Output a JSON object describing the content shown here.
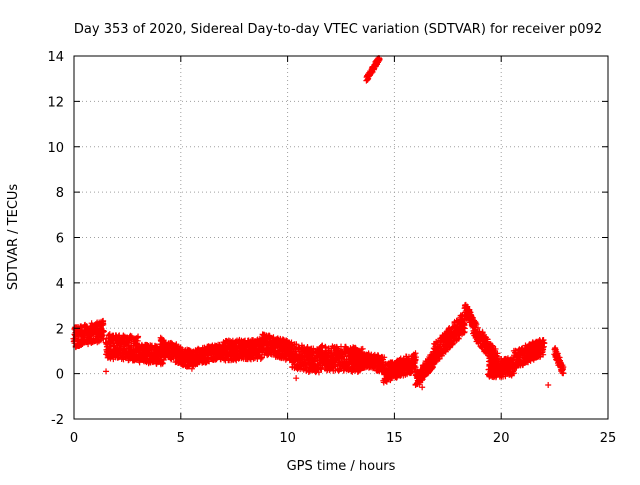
{
  "chart_data": {
    "type": "scatter",
    "title": "Day 353 of 2020, Sidereal Day-to-day VTEC variation (SDTVAR) for receiver p092",
    "xlabel": "GPS time / hours",
    "ylabel": "SDTVAR / TECUs",
    "xlim": [
      0,
      25
    ],
    "ylim": [
      -2,
      14
    ],
    "xticks": [
      0,
      5,
      10,
      15,
      20,
      25
    ],
    "yticks": [
      -2,
      0,
      2,
      4,
      6,
      8,
      10,
      12,
      14
    ],
    "xtick_labels": [
      "0",
      "5",
      "10",
      "15",
      "20",
      "25"
    ],
    "ytick_labels": [
      "-2",
      "0",
      "2",
      "4",
      "6",
      "8",
      "10",
      "12",
      "14"
    ],
    "grid": true,
    "marker": "+",
    "color": "#ff0000",
    "series": [
      {
        "name": "SDTVAR",
        "segments": [
          {
            "x_start": 0.0,
            "x_end": 1.4,
            "y_start": 1.6,
            "y_end": 1.9,
            "spread": 0.9
          },
          {
            "x_start": 1.5,
            "x_end": 3.0,
            "y_start": 1.2,
            "y_end": 1.1,
            "spread": 1.1
          },
          {
            "x_start": 3.0,
            "x_end": 4.2,
            "y_start": 0.9,
            "y_end": 0.8,
            "spread": 0.8
          },
          {
            "x_start": 4.0,
            "x_end": 5.5,
            "y_start": 1.2,
            "y_end": 0.6,
            "spread": 0.8
          },
          {
            "x_start": 5.5,
            "x_end": 7.0,
            "y_start": 0.7,
            "y_end": 1.0,
            "spread": 0.7
          },
          {
            "x_start": 7.0,
            "x_end": 8.8,
            "y_start": 1.0,
            "y_end": 1.1,
            "spread": 0.9
          },
          {
            "x_start": 8.8,
            "x_end": 10.2,
            "y_start": 1.3,
            "y_end": 1.0,
            "spread": 0.9
          },
          {
            "x_start": 10.2,
            "x_end": 11.5,
            "y_start": 0.8,
            "y_end": 0.5,
            "spread": 1.1
          },
          {
            "x_start": 11.5,
            "x_end": 13.5,
            "y_start": 0.7,
            "y_end": 0.6,
            "spread": 1.1
          },
          {
            "x_start": 13.7,
            "x_end": 14.3,
            "y_start": 13.0,
            "y_end": 13.9,
            "spread": 0.2
          },
          {
            "x_start": 13.0,
            "x_end": 14.5,
            "y_start": 0.7,
            "y_end": 0.4,
            "spread": 0.7
          },
          {
            "x_start": 14.5,
            "x_end": 16.0,
            "y_start": 0.0,
            "y_end": 0.5,
            "spread": 0.8
          },
          {
            "x_start": 16.0,
            "x_end": 16.8,
            "y_start": -0.3,
            "y_end": 0.6,
            "spread": 0.7
          },
          {
            "x_start": 16.8,
            "x_end": 18.3,
            "y_start": 0.8,
            "y_end": 2.3,
            "spread": 0.9
          },
          {
            "x_start": 18.3,
            "x_end": 18.7,
            "y_start": 2.8,
            "y_end": 2.3,
            "spread": 0.6
          },
          {
            "x_start": 18.7,
            "x_end": 19.8,
            "y_start": 2.0,
            "y_end": 0.6,
            "spread": 0.8
          },
          {
            "x_start": 19.4,
            "x_end": 20.6,
            "y_start": 0.2,
            "y_end": 0.3,
            "spread": 0.8
          },
          {
            "x_start": 20.6,
            "x_end": 22.0,
            "y_start": 0.6,
            "y_end": 1.2,
            "spread": 0.8
          },
          {
            "x_start": 22.5,
            "x_end": 22.9,
            "y_start": 1.0,
            "y_end": 0.1,
            "spread": 0.4
          }
        ],
        "outliers": [
          {
            "x": 1.5,
            "y": 0.1
          },
          {
            "x": 10.4,
            "y": -0.2
          },
          {
            "x": 12.1,
            "y": 1.2
          },
          {
            "x": 16.3,
            "y": -0.6
          },
          {
            "x": 22.2,
            "y": -0.5
          }
        ]
      }
    ]
  }
}
